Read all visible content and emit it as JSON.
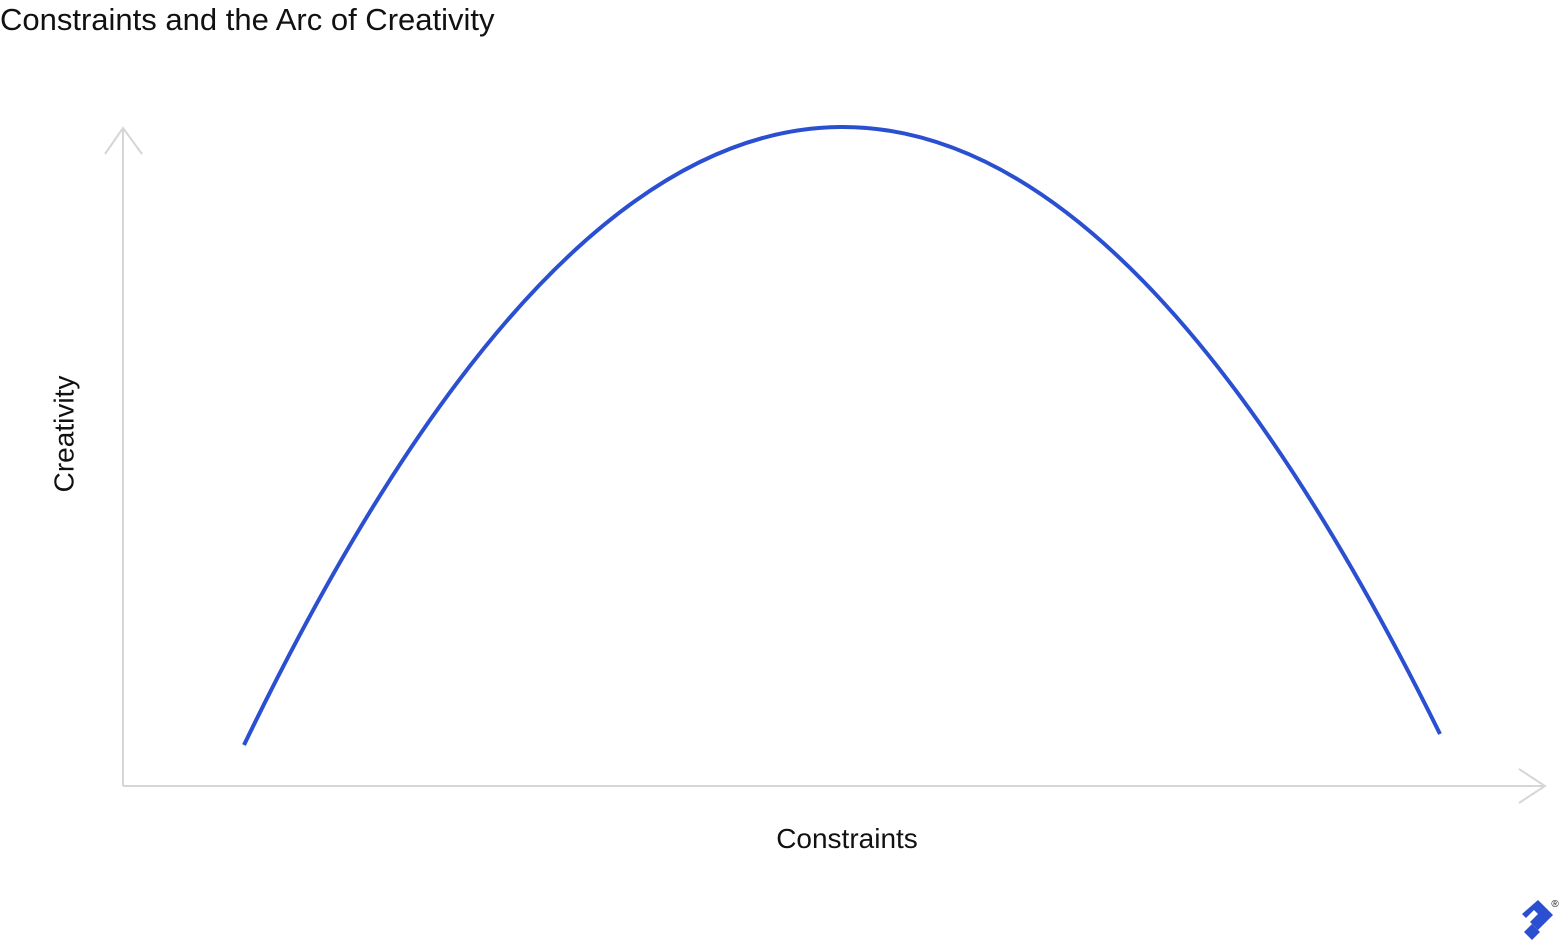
{
  "header": {
    "title": "Constraints and the Arc of Creativity"
  },
  "axes": {
    "y_label": "Creativity",
    "x_label": "Constraints"
  },
  "logo": {
    "mark": "®"
  }
}
